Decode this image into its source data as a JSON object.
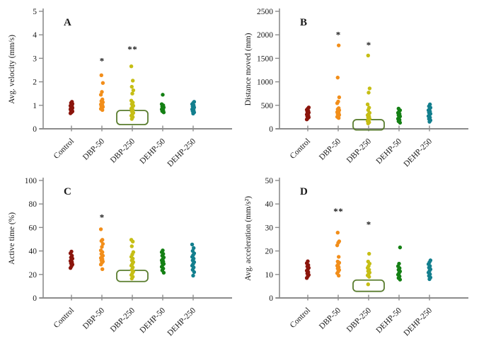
{
  "figure": {
    "background": "#ffffff",
    "description": "Four-panel dot plot figure comparing behavioral metrics across phthalate exposure groups"
  },
  "style": {
    "axis_color": "#8c8c8c",
    "text_color": "#1a1a1a",
    "significance_color": "#cd7c7c",
    "highlight_box_color": "#5a7d2f"
  },
  "chart_data": [
    {
      "id": "A",
      "type": "scatter",
      "panel_label": "A",
      "ylabel": "Avg. velocity (mm/s)",
      "ylim": [
        0,
        5
      ],
      "yticks": [
        0,
        1,
        2,
        3,
        4,
        5
      ],
      "categories": [
        "Control",
        "DBP-50",
        "DBP-250",
        "DEHP-50",
        "DEHP-250"
      ],
      "series": [
        {
          "name": "Control",
          "color": "#8B150C",
          "values": [
            0.66,
            0.7,
            0.74,
            0.77,
            0.8,
            0.83,
            0.86,
            0.89,
            0.92,
            0.95,
            0.98,
            1.02,
            1.06,
            1.1,
            1.15
          ],
          "asterisks": []
        },
        {
          "name": "DBP-50",
          "color": "#F28E1A",
          "values": [
            0.8,
            0.85,
            0.89,
            0.93,
            0.96,
            1.0,
            1.04,
            1.08,
            1.13,
            1.18,
            1.25,
            1.45,
            1.57,
            1.95,
            2.28
          ],
          "asterisks": [
            2.95
          ]
        },
        {
          "name": "DBP-250",
          "color": "#C6BE15",
          "values": [
            0.42,
            0.5,
            0.56,
            0.62,
            0.68,
            0.74,
            0.8,
            0.86,
            0.92,
            0.98,
            1.05,
            1.12,
            1.2,
            1.5,
            1.64,
            1.79,
            2.05,
            2.66
          ],
          "asterisks": [
            3.45,
            3.45
          ]
        },
        {
          "name": "DEHP-50",
          "color": "#148014",
          "values": [
            0.7,
            0.75,
            0.79,
            0.83,
            0.87,
            0.91,
            0.95,
            1.0,
            1.05,
            1.45
          ],
          "asterisks": []
        },
        {
          "name": "DEHP-250",
          "color": "#137F8E",
          "values": [
            0.65,
            0.7,
            0.75,
            0.79,
            0.83,
            0.87,
            0.91,
            0.95,
            1.0,
            1.05,
            1.1,
            1.15
          ],
          "asterisks": []
        }
      ],
      "highlight_box": {
        "category": "DBP-250",
        "y_from": 0.18,
        "y_to": 0.78
      }
    },
    {
      "id": "B",
      "type": "scatter",
      "panel_label": "B",
      "ylabel": "Distance moved (mm)",
      "ylim": [
        0,
        2500
      ],
      "yticks": [
        0,
        500,
        1000,
        1500,
        2000,
        2500
      ],
      "categories": [
        "Control",
        "DBP-50",
        "DBP-250",
        "DEHP-50",
        "DEHP-250"
      ],
      "series": [
        {
          "name": "Control",
          "color": "#8B150C",
          "values": [
            200,
            225,
            245,
            265,
            285,
            305,
            325,
            345,
            365,
            385,
            405,
            430,
            455
          ],
          "asterisks": []
        },
        {
          "name": "DBP-50",
          "color": "#F28E1A",
          "values": [
            230,
            255,
            275,
            295,
            315,
            335,
            355,
            375,
            395,
            415,
            440,
            545,
            580,
            670,
            1090,
            1775
          ],
          "asterisks": [
            2030
          ]
        },
        {
          "name": "DBP-250",
          "color": "#C6BE15",
          "values": [
            115,
            140,
            165,
            190,
            215,
            240,
            265,
            290,
            315,
            340,
            400,
            450,
            520,
            770,
            860,
            1560
          ],
          "asterisks": [
            1815
          ]
        },
        {
          "name": "DEHP-50",
          "color": "#148014",
          "values": [
            130,
            160,
            190,
            215,
            240,
            265,
            290,
            315,
            340,
            365,
            395,
            430
          ],
          "asterisks": []
        },
        {
          "name": "DEHP-250",
          "color": "#137F8E",
          "values": [
            150,
            180,
            210,
            240,
            270,
            295,
            320,
            345,
            370,
            395,
            420,
            450,
            480,
            520
          ],
          "asterisks": []
        }
      ],
      "highlight_box": {
        "category": "DBP-250",
        "y_from": -25,
        "y_to": 195
      }
    },
    {
      "id": "C",
      "type": "scatter",
      "panel_label": "C",
      "ylabel": "Active time  (%)",
      "ylim": [
        0,
        100
      ],
      "yticks": [
        0,
        20,
        40,
        60,
        80,
        100
      ],
      "categories": [
        "Control",
        "DBP-50",
        "DBP-250",
        "DEHP-50",
        "DEHP-250"
      ],
      "series": [
        {
          "name": "Control",
          "color": "#8B150C",
          "values": [
            25.5,
            27,
            28.5,
            29.5,
            30.5,
            31.5,
            32.5,
            33.5,
            34.5,
            36,
            38,
            39.5
          ],
          "asterisks": []
        },
        {
          "name": "DBP-50",
          "color": "#F28E1A",
          "values": [
            24.5,
            28.5,
            30,
            31,
            32,
            33,
            34,
            35,
            36,
            37.5,
            39,
            40.5,
            43.5,
            46,
            48.5,
            49.5,
            58.5
          ],
          "asterisks": [
            70
          ]
        },
        {
          "name": "DBP-250",
          "color": "#C6BE15",
          "values": [
            16.5,
            18,
            19.5,
            21,
            22.5,
            24,
            26,
            27.5,
            29,
            30.5,
            32,
            33.5,
            35,
            37,
            39,
            44,
            48,
            49.5
          ],
          "asterisks": []
        },
        {
          "name": "DEHP-50",
          "color": "#148014",
          "values": [
            21.5,
            23.5,
            25,
            26.5,
            28,
            29,
            30,
            31,
            32,
            33,
            34.5,
            36,
            37.5,
            39,
            40.5
          ],
          "asterisks": []
        },
        {
          "name": "DEHP-250",
          "color": "#137F8E",
          "values": [
            19,
            22,
            24,
            26,
            27.5,
            29,
            30.5,
            32,
            33.5,
            35,
            36.5,
            38,
            40,
            42.5,
            45.5
          ],
          "asterisks": []
        }
      ],
      "highlight_box": {
        "category": "DBP-250",
        "y_from": 14,
        "y_to": 23.5
      }
    },
    {
      "id": "D",
      "type": "scatter",
      "panel_label": "D",
      "ylabel": "Avg. acceleration  (mm/s²)",
      "ylim": [
        0,
        50
      ],
      "yticks": [
        0,
        10,
        20,
        30,
        40,
        50
      ],
      "categories": [
        "Control",
        "DBP-50",
        "DBP-250",
        "DEHP-50",
        "DEHP-250"
      ],
      "series": [
        {
          "name": "Control",
          "color": "#8B150C",
          "values": [
            8.5,
            9.2,
            9.8,
            10.4,
            11,
            11.6,
            12.2,
            12.8,
            13.4,
            14,
            14.8,
            15.6
          ],
          "asterisks": []
        },
        {
          "name": "DBP-50",
          "color": "#F28E1A",
          "values": [
            9.5,
            10.5,
            11.2,
            11.9,
            12.5,
            13.1,
            13.7,
            14.3,
            15,
            15.5,
            17.5,
            22.4,
            23.5,
            24.1,
            27.8
          ],
          "asterisks": [
            37.5,
            37.5
          ]
        },
        {
          "name": "DBP-250",
          "color": "#C6BE15",
          "values": [
            5.8,
            9,
            9.6,
            10.2,
            10.8,
            11.4,
            12,
            12.8,
            13.6,
            14.6,
            15.5,
            18.8
          ],
          "asterisks": [
            32
          ]
        },
        {
          "name": "DEHP-50",
          "color": "#148014",
          "values": [
            7.8,
            8.5,
            9.2,
            9.9,
            10.6,
            11.3,
            12,
            12.7,
            13.5,
            14.6,
            21.5
          ],
          "asterisks": []
        },
        {
          "name": "DEHP-250",
          "color": "#137F8E",
          "values": [
            8,
            8.7,
            9.4,
            10.1,
            10.8,
            11.5,
            12.2,
            12.9,
            13.6,
            14.4,
            15.2,
            16
          ],
          "asterisks": []
        }
      ],
      "highlight_box": {
        "category": "DBP-250",
        "y_from": 2.8,
        "y_to": 7.6
      }
    }
  ]
}
